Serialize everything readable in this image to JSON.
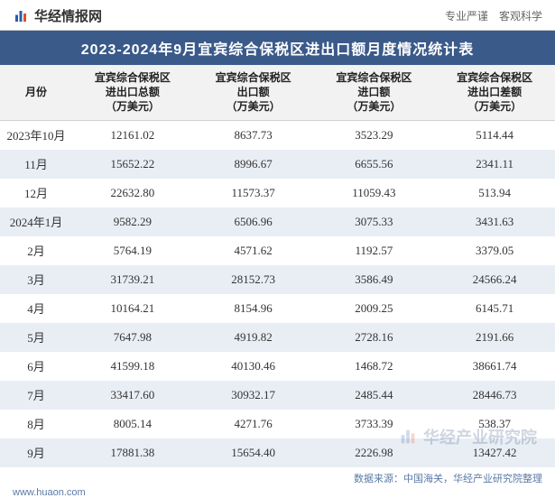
{
  "header": {
    "logo_text": "华经情报网",
    "tagline": "专业严谨　客观科学",
    "logo_colors": [
      "#2a5caa",
      "#e94e1b"
    ]
  },
  "title": "2023-2024年9月宜宾综合保税区进出口额月度情况统计表",
  "table": {
    "type": "table",
    "background_color": "#ffffff",
    "zebra_color": "#e9eef5",
    "header_bg": "#f2f2f2",
    "title_band_bg": "#3a5a8a",
    "columns": [
      {
        "label_l1": "月份",
        "label_l2": "",
        "label_l3": ""
      },
      {
        "label_l1": "宜宾综合保税区",
        "label_l2": "进出口总额",
        "label_l3": "（万美元）"
      },
      {
        "label_l1": "宜宾综合保税区",
        "label_l2": "出口额",
        "label_l3": "（万美元）"
      },
      {
        "label_l1": "宜宾综合保税区",
        "label_l2": "进口额",
        "label_l3": "（万美元）"
      },
      {
        "label_l1": "宜宾综合保税区",
        "label_l2": "进出口差额",
        "label_l3": "（万美元）"
      }
    ],
    "rows": [
      {
        "month": "2023年10月",
        "total": "12161.02",
        "export": "8637.73",
        "import": "3523.29",
        "diff": "5114.44"
      },
      {
        "month": "11月",
        "total": "15652.22",
        "export": "8996.67",
        "import": "6655.56",
        "diff": "2341.11"
      },
      {
        "month": "12月",
        "total": "22632.80",
        "export": "11573.37",
        "import": "11059.43",
        "diff": "513.94"
      },
      {
        "month": "2024年1月",
        "total": "9582.29",
        "export": "6506.96",
        "import": "3075.33",
        "diff": "3431.63"
      },
      {
        "month": "2月",
        "total": "5764.19",
        "export": "4571.62",
        "import": "1192.57",
        "diff": "3379.05"
      },
      {
        "month": "3月",
        "total": "31739.21",
        "export": "28152.73",
        "import": "3586.49",
        "diff": "24566.24"
      },
      {
        "month": "4月",
        "total": "10164.21",
        "export": "8154.96",
        "import": "2009.25",
        "diff": "6145.71"
      },
      {
        "month": "5月",
        "total": "7647.98",
        "export": "4919.82",
        "import": "2728.16",
        "diff": "2191.66"
      },
      {
        "month": "6月",
        "total": "41599.18",
        "export": "40130.46",
        "import": "1468.72",
        "diff": "38661.74"
      },
      {
        "month": "7月",
        "total": "33417.60",
        "export": "30932.17",
        "import": "2485.44",
        "diff": "28446.73"
      },
      {
        "month": "8月",
        "total": "8005.14",
        "export": "4271.76",
        "import": "3733.39",
        "diff": "538.37"
      },
      {
        "month": "9月",
        "total": "17881.38",
        "export": "15654.40",
        "import": "2226.98",
        "diff": "13427.42"
      }
    ]
  },
  "source": "数据来源：中国海关，华经产业研究院整理",
  "footer_url": "www.huaon.com",
  "watermark_text": "华经产业研究院"
}
